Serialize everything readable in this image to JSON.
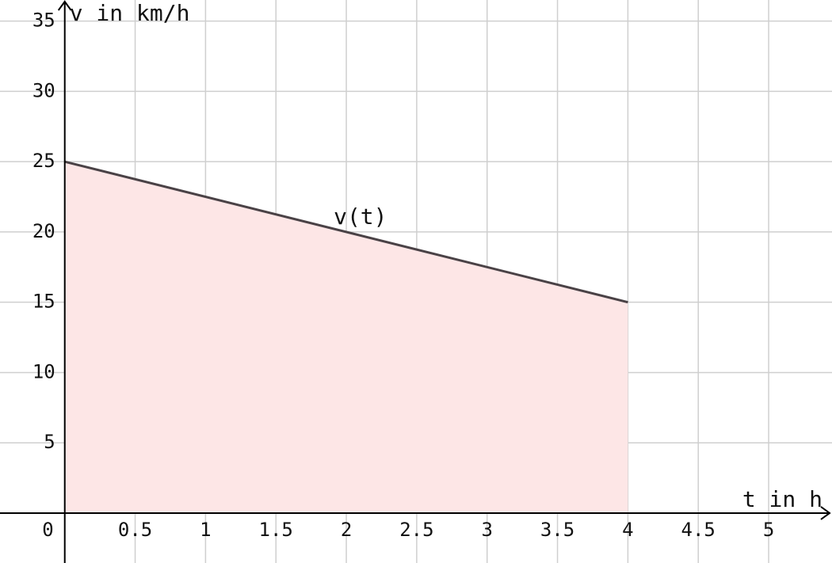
{
  "chart_data": {
    "type": "area",
    "annotation": "v(t)",
    "x_label": "t in h",
    "y_label": "v in km/h",
    "x": [
      0,
      4
    ],
    "series": [
      {
        "name": "v(t)",
        "color": "#4a4246",
        "fill": "#fde6e6",
        "values": [
          25,
          15
        ]
      }
    ],
    "xlim": [
      -0.46,
      5.45
    ],
    "ylim": [
      -3.55,
      36.5
    ],
    "xticks": [
      0,
      0.5,
      1,
      1.5,
      2,
      2.5,
      3,
      3.5,
      4,
      4.5,
      5
    ],
    "yticks": [
      5,
      10,
      15,
      20,
      25,
      30,
      35
    ],
    "grid": true
  }
}
